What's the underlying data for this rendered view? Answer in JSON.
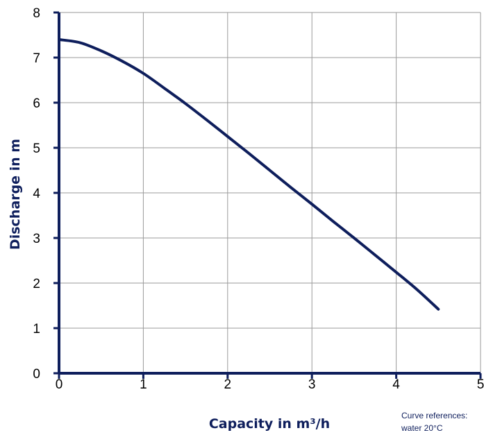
{
  "chart_data": {
    "type": "line",
    "xlabel": "Capacity in m³/h",
    "ylabel": "Discharge in m",
    "xlim": [
      0,
      5
    ],
    "ylim": [
      0,
      8
    ],
    "xticks": [
      "0",
      "1",
      "2",
      "3",
      "4",
      "5"
    ],
    "yticks": [
      "0",
      "1",
      "2",
      "3",
      "4",
      "5",
      "6",
      "7",
      "8"
    ],
    "grid": true,
    "series": [
      {
        "x": [
          0,
          0.25,
          0.5,
          0.75,
          1.0,
          1.25,
          1.5,
          1.75,
          2.0,
          2.25,
          2.5,
          2.75,
          3.0,
          3.25,
          3.5,
          3.75,
          4.0,
          4.25,
          4.5
        ],
        "y": [
          7.4,
          7.33,
          7.15,
          6.92,
          6.65,
          6.32,
          5.98,
          5.62,
          5.25,
          4.88,
          4.5,
          4.12,
          3.75,
          3.37,
          3.0,
          2.62,
          2.24,
          1.85,
          1.42
        ],
        "color": "#0e1e5c"
      }
    ],
    "annotation_line1": "Curve references:",
    "annotation_line2": "water 20°C"
  }
}
